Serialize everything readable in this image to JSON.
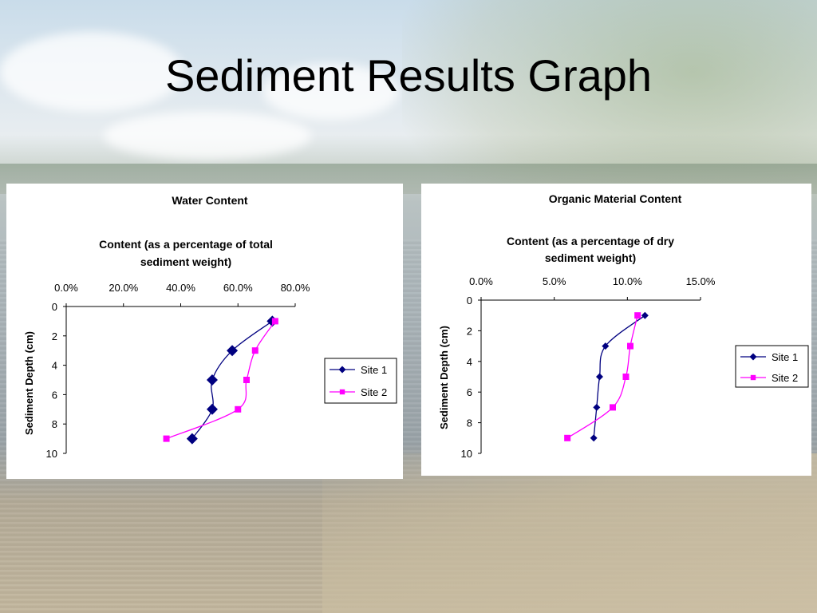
{
  "slide": {
    "title": "Sediment Results Graph"
  },
  "chart_data": [
    {
      "type": "line",
      "title": "Water Content",
      "xlabel_lines": [
        "Content (as a percentage of total",
        "sediment weight)"
      ],
      "ylabel": "Sediment Depth (cm)",
      "xlim": [
        0,
        80
      ],
      "ylim": [
        0,
        10
      ],
      "x_axis_position": "top",
      "y_axis_reversed": true,
      "xticks": [
        "0.0%",
        "20.0%",
        "40.0%",
        "60.0%",
        "80.0%"
      ],
      "yticks": [
        "0",
        "2",
        "4",
        "6",
        "8",
        "10"
      ],
      "grid": false,
      "legend": "right",
      "series": [
        {
          "name": "Site 1",
          "color": "#000080",
          "marker": "diamond",
          "x": [
            72,
            58,
            51,
            51,
            44
          ],
          "y": [
            1,
            3,
            5,
            7,
            9
          ]
        },
        {
          "name": "Site 2",
          "color": "#ff00ff",
          "marker": "square",
          "x": [
            73,
            66,
            63,
            60,
            35
          ],
          "y": [
            1,
            3,
            5,
            7,
            9
          ]
        }
      ]
    },
    {
      "type": "line",
      "title": "Organic Material Content",
      "xlabel_lines": [
        "Content (as a percentage of dry",
        "sediment weight)"
      ],
      "ylabel": "Sediment Depth (cm)",
      "xlim": [
        0,
        15
      ],
      "ylim": [
        0,
        10
      ],
      "x_axis_position": "top",
      "y_axis_reversed": true,
      "xticks": [
        "0.0%",
        "5.0%",
        "10.0%",
        "15.0%"
      ],
      "yticks": [
        "0",
        "2",
        "4",
        "6",
        "8",
        "10"
      ],
      "grid": false,
      "legend": "right",
      "series": [
        {
          "name": "Site 1",
          "color": "#000080",
          "marker": "diamond",
          "x": [
            11.2,
            8.5,
            8.1,
            7.9,
            7.7
          ],
          "y": [
            1,
            3,
            5,
            7,
            9
          ]
        },
        {
          "name": "Site 2",
          "color": "#ff00ff",
          "marker": "square",
          "x": [
            10.7,
            10.2,
            9.9,
            9.0,
            5.9
          ],
          "y": [
            1,
            3,
            5,
            7,
            9
          ]
        }
      ]
    }
  ]
}
